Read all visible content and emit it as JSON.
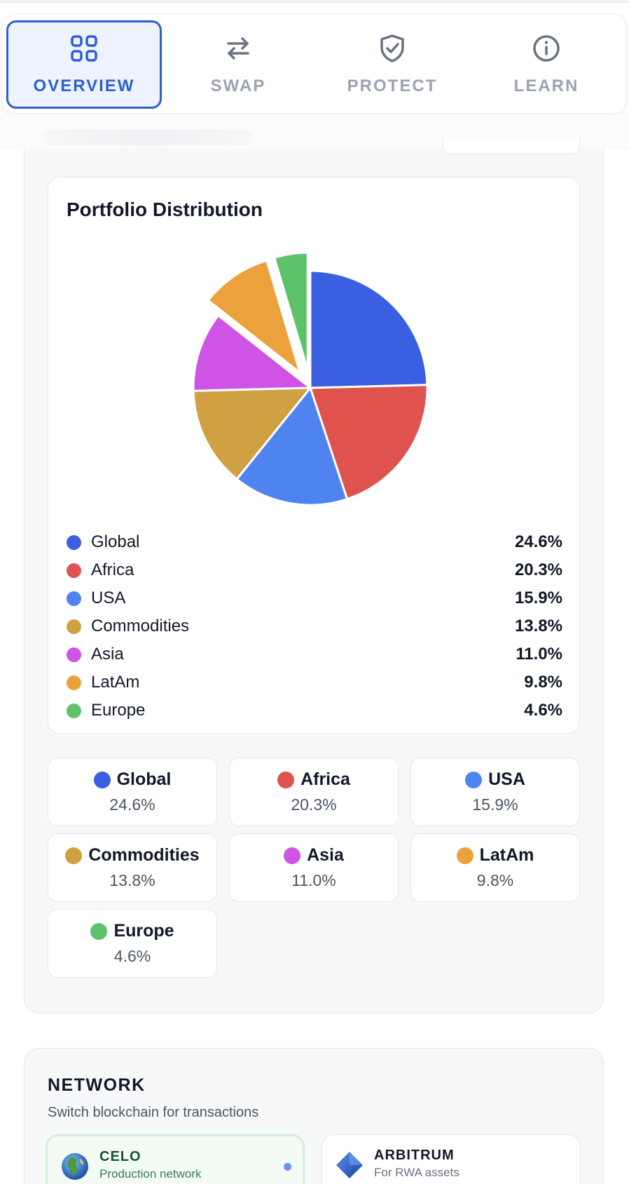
{
  "nav": {
    "tabs": [
      {
        "label": "OVERVIEW",
        "icon": "grid-icon",
        "active": true
      },
      {
        "label": "SWAP",
        "icon": "swap-arrows-icon",
        "active": false
      },
      {
        "label": "PROTECT",
        "icon": "shield-check-icon",
        "active": false
      },
      {
        "label": "LEARN",
        "icon": "info-icon",
        "active": false
      }
    ]
  },
  "distribution": {
    "title": "Portfolio Distribution"
  },
  "chart_data": {
    "type": "pie",
    "title": "Portfolio Distribution",
    "categories": [
      "Global",
      "Africa",
      "USA",
      "Commodities",
      "Asia",
      "LatAm",
      "Europe"
    ],
    "values": [
      24.6,
      20.3,
      15.9,
      13.8,
      11.0,
      9.8,
      4.6
    ],
    "labels": [
      "24.6%",
      "20.3%",
      "15.9%",
      "13.8%",
      "11.0%",
      "9.8%",
      "4.6%"
    ],
    "colors": [
      "#3a5fe0",
      "#e0524d",
      "#4f84f0",
      "#cfa143",
      "#cf54e6",
      "#eba23c",
      "#5dc26a"
    ],
    "exploded": [
      "LatAm",
      "Europe"
    ],
    "legend": "below"
  },
  "network": {
    "title": "NETWORK",
    "subtitle": "Switch blockchain for transactions",
    "options": [
      {
        "name": "CELO",
        "description": "Production network",
        "icon": "globe-icon",
        "selected": true
      },
      {
        "name": "ARBITRUM",
        "description": "For RWA assets",
        "icon": "diamond-icon",
        "selected": false
      }
    ]
  }
}
